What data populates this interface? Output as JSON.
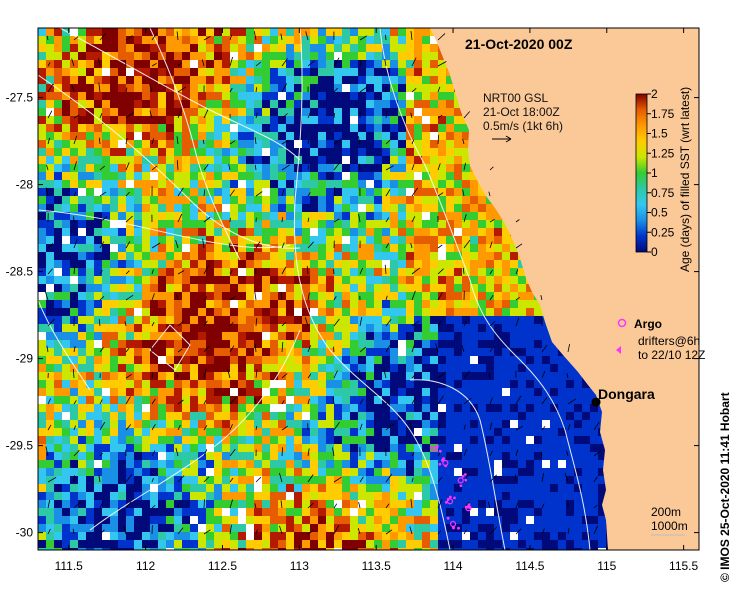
{
  "map": {
    "title": "21-Oct-2020 00Z",
    "credit": "©  IMOS 25-Oct-2020 11:41 Hobart",
    "x_axis": {
      "min": 111.3,
      "max": 115.6,
      "ticks": [
        "111.5",
        "112",
        "112.5",
        "113",
        "113.5",
        "114",
        "114.5",
        "115",
        "115.5"
      ],
      "tick_values": [
        111.5,
        112,
        112.5,
        113,
        113.5,
        114,
        114.5,
        115,
        115.5
      ]
    },
    "y_axis": {
      "min": -30.1,
      "max": -27.1,
      "ticks": [
        "-27.5",
        "-28",
        "-28.5",
        "-29",
        "-29.5",
        "-30"
      ],
      "tick_values": [
        -27.5,
        -28,
        -28.5,
        -29,
        -29.5,
        -30
      ]
    },
    "current_note": {
      "line1": "NRT00 GSL",
      "line2": "21-Oct 18:00Z",
      "line3": "0.5m/s (1kt 6h)"
    },
    "colorbar": {
      "label": "Age (days) of filled SST (wrt latest)",
      "ticks": [
        "2",
        "1.75",
        "1.5",
        "1.25",
        "1",
        "0.75",
        "0.5",
        "0.25",
        "0"
      ],
      "colors": [
        "#000a7a",
        "#0033cc",
        "#1a8fe6",
        "#33c7f0",
        "#2dc9a6",
        "#33cc33",
        "#cce600",
        "#ffcc00",
        "#ff9900",
        "#e65c00",
        "#b31a00",
        "#800000"
      ]
    },
    "legend": {
      "argo_label": "Argo",
      "drifters_line1": "drifters@6h",
      "drifters_line2": "to 22/10 12Z"
    },
    "place": {
      "name": "Dongara",
      "lon": 114.93,
      "lat": -29.25
    },
    "isobaths": {
      "label_200": "200m",
      "label_1000": "1000m"
    },
    "colors": {
      "land": "#fbc998",
      "deep_blue": "#000a7a",
      "magenta": "#ff33ff",
      "isobath": "#ffffff"
    },
    "argo_floats": [
      {
        "lon": 113.88,
        "lat": -29.52
      },
      {
        "lon": 113.95,
        "lat": -29.6
      },
      {
        "lon": 114.05,
        "lat": -29.7
      },
      {
        "lon": 113.98,
        "lat": -29.82
      },
      {
        "lon": 114.1,
        "lat": -29.86
      },
      {
        "lon": 114.0,
        "lat": -29.95
      }
    ]
  }
}
